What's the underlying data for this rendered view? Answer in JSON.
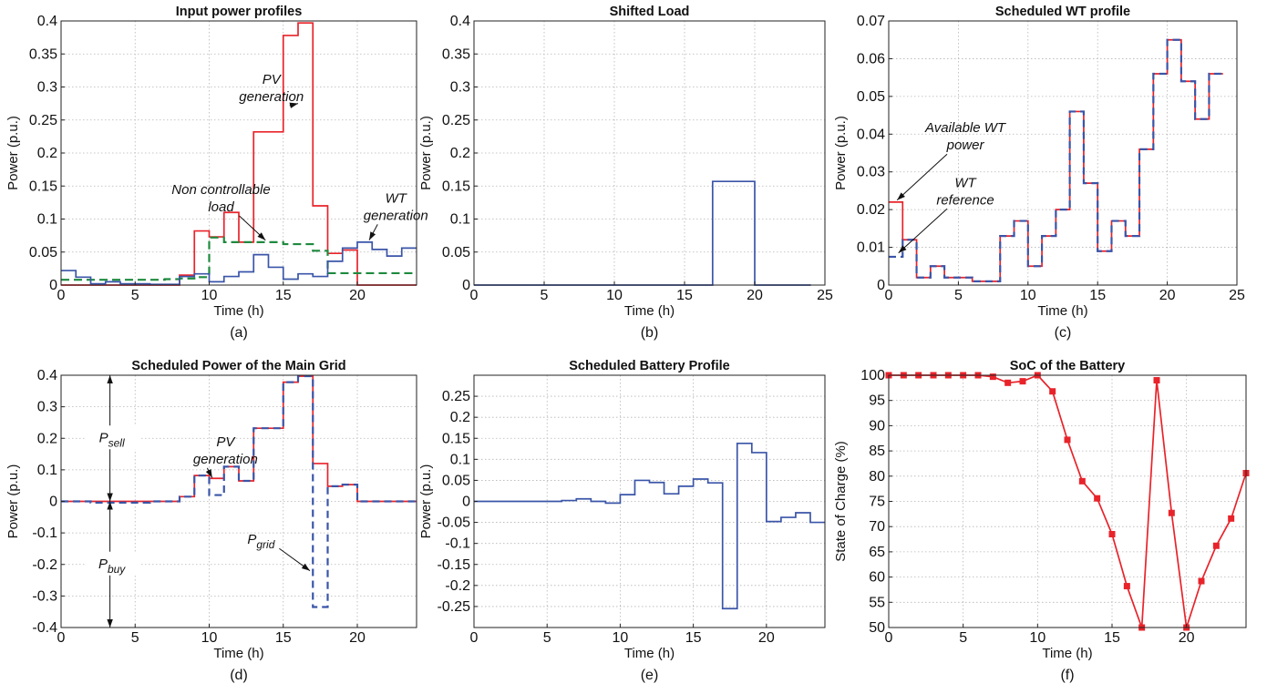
{
  "colors": {
    "red": "#e8232a",
    "blue": "#3a55a8",
    "green": "#1e8a3e",
    "black": "#111111",
    "grid": "#b5b5b5"
  },
  "chart_data": [
    {
      "type": "line",
      "title": "Input power profiles",
      "xlabel": "Time (h)",
      "ylabel": "Power (p.u.)",
      "sublabel": "(a)",
      "xlim": [
        0,
        24
      ],
      "ylim": [
        0,
        0.4
      ],
      "xticks": [
        0,
        5,
        10,
        15,
        20
      ],
      "yticks": [
        0,
        0.05,
        0.1,
        0.15,
        0.2,
        0.25,
        0.3,
        0.35,
        0.4
      ],
      "ytick_labels": [
        "0",
        "0.05",
        "0.1",
        "0.15",
        "0.2",
        "0.25",
        "0.3",
        "0.35",
        "0.4"
      ],
      "grid": true,
      "series": [
        {
          "color": "red",
          "style": "solid",
          "step": true,
          "x": [
            0,
            1,
            2,
            3,
            4,
            5,
            6,
            7,
            8,
            9,
            10,
            11,
            12,
            13,
            14,
            15,
            16,
            17,
            18,
            19,
            20,
            21,
            22,
            23
          ],
          "values": [
            0,
            0,
            0,
            0,
            0,
            0,
            0,
            0,
            0.015,
            0.082,
            0.073,
            0.11,
            0.065,
            0.232,
            0.232,
            0.378,
            0.397,
            0.12,
            0.048,
            0.053,
            0,
            0,
            0,
            0
          ]
        },
        {
          "color": "green",
          "style": "dashed",
          "step": true,
          "x": [
            0,
            1,
            2,
            3,
            4,
            5,
            6,
            7,
            8,
            9,
            10,
            11,
            12,
            13,
            14,
            15,
            16,
            17,
            18,
            19,
            20,
            21,
            22,
            23
          ],
          "values": [
            0.008,
            0.008,
            0.008,
            0.008,
            0.008,
            0.008,
            0.008,
            0.009,
            0.01,
            0.012,
            0.072,
            0.065,
            0.065,
            0.065,
            0.065,
            0.062,
            0.062,
            0.052,
            0.018,
            0.018,
            0.018,
            0.018,
            0.018,
            0.018
          ]
        },
        {
          "color": "blue",
          "style": "solid",
          "step": true,
          "x": [
            0,
            1,
            2,
            3,
            4,
            5,
            6,
            7,
            8,
            9,
            10,
            11,
            12,
            13,
            14,
            15,
            16,
            17,
            18,
            19,
            20,
            21,
            22,
            23
          ],
          "values": [
            0.022,
            0.012,
            0.002,
            0.005,
            0.002,
            0.002,
            0.001,
            0.001,
            0.013,
            0.017,
            0.005,
            0.013,
            0.02,
            0.046,
            0.027,
            0.009,
            0.017,
            0.013,
            0.036,
            0.056,
            0.065,
            0.054,
            0.044,
            0.056
          ]
        }
      ],
      "annotations": [
        {
          "lines": [
            "PV",
            "generation"
          ],
          "x": 14.2,
          "y": 0.305,
          "tx": 16,
          "ty": 0.275
        },
        {
          "lines": [
            "Non controllable",
            "load"
          ],
          "x": 10.8,
          "y": 0.138,
          "tx": 13.8,
          "ty": 0.068
        },
        {
          "lines": [
            "WT",
            "generation"
          ],
          "x": 22.6,
          "y": 0.125,
          "tx": 20.8,
          "ty": 0.068
        }
      ]
    },
    {
      "type": "line",
      "title": "Shifted Load",
      "xlabel": "Time (h)",
      "ylabel": "Power (p.u.)",
      "sublabel": "(b)",
      "xlim": [
        0,
        25
      ],
      "ylim": [
        0,
        0.4
      ],
      "xticks": [
        0,
        5,
        10,
        15,
        20,
        25
      ],
      "yticks": [
        0,
        0.05,
        0.1,
        0.15,
        0.2,
        0.25,
        0.3,
        0.35,
        0.4
      ],
      "ytick_labels": [
        "0",
        "0.05",
        "0.1",
        "0.15",
        "0.2",
        "0.25",
        "0.3",
        "0.35",
        "0.4"
      ],
      "grid": true,
      "series": [
        {
          "color": "blue",
          "style": "solid",
          "step": true,
          "x": [
            0,
            17,
            20,
            23
          ],
          "values": [
            0,
            0.157,
            0,
            0
          ]
        }
      ]
    },
    {
      "type": "line",
      "title": "Scheduled WT profile",
      "xlabel": "Time (h)",
      "ylabel": "Power (p.u.)",
      "sublabel": "(c)",
      "xlim": [
        0,
        25
      ],
      "ylim": [
        0,
        0.07
      ],
      "xticks": [
        0,
        5,
        10,
        15,
        20,
        25
      ],
      "yticks": [
        0,
        0.01,
        0.02,
        0.03,
        0.04,
        0.05,
        0.06,
        0.07
      ],
      "ytick_labels": [
        "0",
        "0.01",
        "0.02",
        "0.03",
        "0.04",
        "0.05",
        "0.06",
        "0.07"
      ],
      "grid": true,
      "series": [
        {
          "color": "red",
          "style": "solid",
          "step": true,
          "x": [
            0,
            1,
            2,
            3,
            4,
            5,
            6,
            7,
            8,
            9,
            10,
            11,
            12,
            13,
            14,
            15,
            16,
            17,
            18,
            19,
            20,
            21,
            22,
            23
          ],
          "values": [
            0.022,
            0.012,
            0.002,
            0.005,
            0.002,
            0.002,
            0.001,
            0.001,
            0.013,
            0.017,
            0.005,
            0.013,
            0.02,
            0.046,
            0.027,
            0.009,
            0.017,
            0.013,
            0.036,
            0.056,
            0.065,
            0.054,
            0.044,
            0.056
          ]
        },
        {
          "color": "blue",
          "style": "dashed",
          "step": true,
          "x": [
            0,
            1,
            2,
            3,
            4,
            5,
            6,
            7,
            8,
            9,
            10,
            11,
            12,
            13,
            14,
            15,
            16,
            17,
            18,
            19,
            20,
            21,
            22,
            23
          ],
          "values": [
            0.0075,
            0.012,
            0.002,
            0.005,
            0.002,
            0.002,
            0.001,
            0.001,
            0.013,
            0.017,
            0.005,
            0.013,
            0.02,
            0.046,
            0.027,
            0.009,
            0.017,
            0.013,
            0.036,
            0.056,
            0.065,
            0.054,
            0.044,
            0.056
          ]
        }
      ],
      "annotations": [
        {
          "lines": [
            "Available WT",
            "power"
          ],
          "x": 5.5,
          "y": 0.0405,
          "tx": 0.6,
          "ty": 0.0225
        },
        {
          "lines": [
            "WT",
            "reference"
          ],
          "x": 5.5,
          "y": 0.026,
          "tx": 0.7,
          "ty": 0.0085
        }
      ]
    },
    {
      "type": "line",
      "title": "Scheduled Power of the Main Grid",
      "xlabel": "Time (h)",
      "ylabel": "Power (p.u.)",
      "sublabel": "(d)",
      "xlim": [
        0,
        24
      ],
      "ylim": [
        -0.4,
        0.4
      ],
      "xticks": [
        0,
        5,
        10,
        15,
        20
      ],
      "yticks": [
        -0.4,
        -0.3,
        -0.2,
        -0.1,
        0,
        0.1,
        0.2,
        0.3,
        0.4
      ],
      "ytick_labels": [
        "-0.4",
        "-0.3",
        "-0.2",
        "-0.1",
        "0",
        "0.1",
        "0.2",
        "0.3",
        "0.4"
      ],
      "grid": true,
      "series": [
        {
          "color": "red",
          "style": "solid",
          "step": true,
          "x": [
            0,
            1,
            2,
            3,
            4,
            5,
            6,
            7,
            8,
            9,
            10,
            11,
            12,
            13,
            14,
            15,
            16,
            17,
            18,
            19,
            20,
            21,
            22,
            23
          ],
          "values": [
            0,
            0,
            0,
            0,
            0,
            0,
            0,
            0,
            0.015,
            0.082,
            0.073,
            0.11,
            0.065,
            0.232,
            0.232,
            0.378,
            0.397,
            0.12,
            0.048,
            0.053,
            0,
            0,
            0,
            0
          ]
        },
        {
          "color": "blue",
          "style": "dashed",
          "step": true,
          "x": [
            0,
            1,
            2,
            3,
            4,
            5,
            6,
            7,
            8,
            9,
            10,
            11,
            12,
            13,
            14,
            15,
            16,
            17,
            18,
            19,
            20,
            21,
            22,
            23
          ],
          "values": [
            0,
            0,
            -0.004,
            -0.004,
            -0.004,
            -0.004,
            0,
            0,
            0.015,
            0.082,
            0.02,
            0.11,
            0.065,
            0.232,
            0.232,
            0.378,
            0.397,
            -0.335,
            0.048,
            0.053,
            0,
            0,
            0,
            0
          ]
        }
      ],
      "annotations": [
        {
          "lines": [
            "PV",
            "generation"
          ],
          "x": 11.1,
          "y": 0.175,
          "tx": 10.2,
          "ty": 0.075
        },
        {
          "lines": [
            "P|grid"
          ],
          "x": 13.5,
          "y": -0.135,
          "tx": 16.8,
          "ty": -0.22
        }
      ],
      "arrows": [
        {
          "label": "P|sell",
          "x": 3.3,
          "y0": 0,
          "y1": 0.4,
          "ty": 0.2
        },
        {
          "label": "P|buy",
          "x": 3.3,
          "y0": 0,
          "y1": -0.4,
          "ty": -0.2
        }
      ]
    },
    {
      "type": "line",
      "title": "Scheduled Battery Profile",
      "xlabel": "Time (h)",
      "ylabel": "Power (p.u.)",
      "sublabel": "(e)",
      "xlim": [
        0,
        24
      ],
      "ylim": [
        -0.3,
        0.3
      ],
      "xticks": [
        0,
        5,
        10,
        15,
        20
      ],
      "yticks": [
        -0.25,
        -0.2,
        -0.15,
        -0.1,
        -0.05,
        0,
        0.05,
        0.1,
        0.15,
        0.2,
        0.25
      ],
      "ytick_labels": [
        "-0.25",
        "-0.2",
        "-0.15",
        "-0.1",
        "-0.05",
        "0",
        "0.05",
        "0.1",
        "0.15",
        "0.2",
        "0.25"
      ],
      "grid": true,
      "series": [
        {
          "color": "blue",
          "style": "solid",
          "step": true,
          "x": [
            0,
            1,
            2,
            3,
            4,
            5,
            6,
            7,
            8,
            9,
            10,
            11,
            12,
            13,
            14,
            15,
            16,
            17,
            18,
            19,
            20,
            21,
            22,
            23
          ],
          "values": [
            0,
            0,
            0,
            0,
            0,
            0,
            0.002,
            0.006,
            0,
            -0.004,
            0.016,
            0.05,
            0.045,
            0.018,
            0.036,
            0.053,
            0.044,
            -0.255,
            0.138,
            0.116,
            -0.048,
            -0.038,
            -0.027,
            -0.05
          ]
        }
      ]
    },
    {
      "type": "line",
      "title": "SoC of the Battery",
      "xlabel": "Time (h)",
      "ylabel": "State of Charge (%)",
      "sublabel": "(f)",
      "xlim": [
        0,
        24
      ],
      "ylim": [
        50,
        100
      ],
      "xticks": [
        0,
        5,
        10,
        15,
        20
      ],
      "yticks": [
        50,
        55,
        60,
        65,
        70,
        75,
        80,
        85,
        90,
        95,
        100
      ],
      "ytick_labels": [
        "50",
        "55",
        "60",
        "65",
        "70",
        "75",
        "80",
        "85",
        "90",
        "95",
        "100"
      ],
      "grid": true,
      "series": [
        {
          "color": "red",
          "style": "solid",
          "markers": true,
          "x": [
            0,
            1,
            2,
            3,
            4,
            5,
            6,
            7,
            8,
            9,
            10,
            11,
            12,
            13,
            14,
            15,
            16,
            17,
            18,
            19,
            20,
            21,
            22,
            23,
            24
          ],
          "values": [
            100,
            100,
            100,
            100,
            100,
            100,
            100,
            99.7,
            98.5,
            98.8,
            100,
            96.8,
            87.2,
            79,
            75.6,
            68.5,
            58.2,
            50,
            99,
            72.7,
            50,
            59.2,
            66.2,
            71.6,
            80.6
          ]
        }
      ]
    }
  ]
}
